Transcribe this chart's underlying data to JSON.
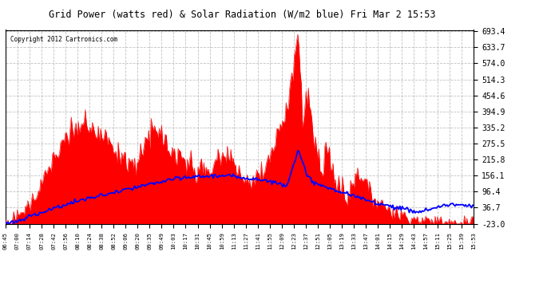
{
  "title": "Grid Power (watts red) & Solar Radiation (W/m2 blue) Fri Mar 2 15:53",
  "copyright": "Copyright 2012 Cartronics.com",
  "yticks": [
    693.4,
    633.7,
    574.0,
    514.3,
    454.6,
    394.9,
    335.2,
    275.5,
    215.8,
    156.1,
    96.4,
    36.7,
    -23.0
  ],
  "ymin": -23.0,
  "ymax": 693.4,
  "bg_color": "#ffffff",
  "plot_bg_color": "#ffffff",
  "grid_color": "#bbbbbb",
  "red_color": "#ff0000",
  "blue_color": "#0000ff",
  "fill_baseline": -23.0,
  "xtick_labels": [
    "06:45",
    "07:00",
    "07:14",
    "07:28",
    "07:42",
    "07:56",
    "08:10",
    "08:24",
    "08:38",
    "08:52",
    "09:06",
    "09:20",
    "09:35",
    "09:49",
    "10:03",
    "10:17",
    "10:31",
    "10:45",
    "10:59",
    "11:13",
    "11:27",
    "11:41",
    "11:55",
    "12:09",
    "12:23",
    "12:37",
    "12:51",
    "13:05",
    "13:19",
    "13:33",
    "13:47",
    "14:01",
    "14:15",
    "14:29",
    "14:43",
    "14:57",
    "15:11",
    "15:25",
    "15:39",
    "15:53"
  ]
}
